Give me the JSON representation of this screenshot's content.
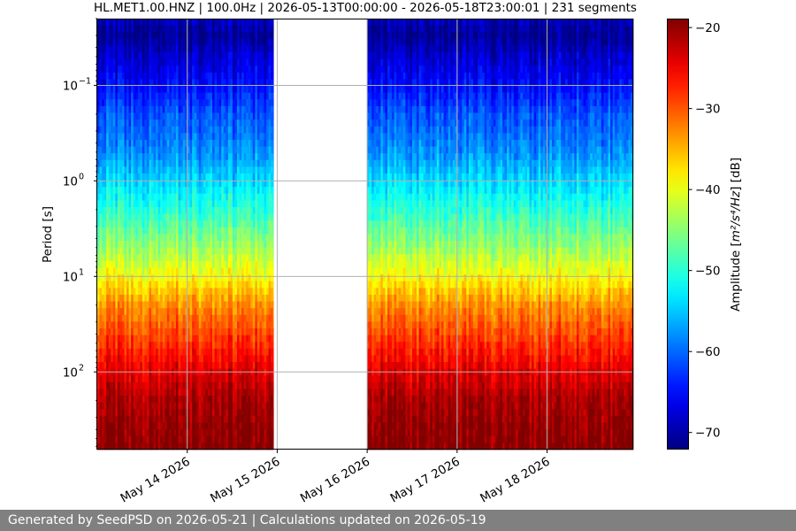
{
  "chart_data": {
    "type": "heatmap",
    "title": "HL.MET1.00.HNZ | 100.0Hz | 2026-05-13T00:00:00 - 2026-05-18T23:00:01 | 231 segments",
    "ylabel": "Period [s]",
    "y_scale": "log",
    "y_inverted": true,
    "ylim": [
      0.02,
      650
    ],
    "y_ticks": [
      {
        "value": 0.1,
        "mantissa": "10",
        "exponent": "−1"
      },
      {
        "value": 1,
        "mantissa": "10",
        "exponent": "0"
      },
      {
        "value": 10,
        "mantissa": "10",
        "exponent": "1"
      },
      {
        "value": 100,
        "mantissa": "10",
        "exponent": "2"
      }
    ],
    "x_range": [
      "2026-05-13T00:00:00",
      "2026-05-18T23:00:01"
    ],
    "x_ticks": [
      {
        "date": "2026-05-14",
        "label": "May 14 2026"
      },
      {
        "date": "2026-05-15",
        "label": "May 15 2026"
      },
      {
        "date": "2026-05-16",
        "label": "May 16 2026"
      },
      {
        "date": "2026-05-17",
        "label": "May 17 2026"
      },
      {
        "date": "2026-05-18",
        "label": "May 18 2026"
      }
    ],
    "segments": 231,
    "data_intervals": [
      [
        "2026-05-13T00:00:00",
        "2026-05-13T23:55:00"
      ],
      [
        "2026-05-14T00:05:00",
        "2026-05-14T23:00:00"
      ],
      [
        "2026-05-16T00:00:00",
        "2026-05-16T23:55:00"
      ],
      [
        "2026-05-17T00:05:00",
        "2026-05-17T23:55:00"
      ],
      [
        "2026-05-18T00:05:00",
        "2026-05-18T23:00:01"
      ]
    ],
    "grid": true,
    "colorbar": {
      "label_prefix": "Amplitude [",
      "label_math": "m²/s⁴/Hz",
      "label_suffix": "] [dB]",
      "range": [
        -72,
        -19
      ],
      "ticks": [
        -20,
        -30,
        -40,
        -50,
        -60,
        -70
      ],
      "tick_labels": [
        "−20",
        "−30",
        "−40",
        "−50",
        "−60",
        "−70"
      ],
      "colormap": "jet"
    },
    "amplitude_profile": [
      {
        "period": 0.02,
        "db": -69
      },
      {
        "period": 0.03,
        "db": -71
      },
      {
        "period": 0.05,
        "db": -68
      },
      {
        "period": 0.1,
        "db": -65
      },
      {
        "period": 0.2,
        "db": -61
      },
      {
        "period": 0.5,
        "db": -58
      },
      {
        "period": 1,
        "db": -54
      },
      {
        "period": 2,
        "db": -50
      },
      {
        "period": 5,
        "db": -44
      },
      {
        "period": 10,
        "db": -39
      },
      {
        "period": 20,
        "db": -33
      },
      {
        "period": 50,
        "db": -28
      },
      {
        "period": 100,
        "db": -24
      },
      {
        "period": 200,
        "db": -21
      },
      {
        "period": 650,
        "db": -19
      }
    ]
  },
  "footer": {
    "text": "Generated by SeedPSD on 2026-05-21 | Calculations updated on 2026-05-19"
  }
}
